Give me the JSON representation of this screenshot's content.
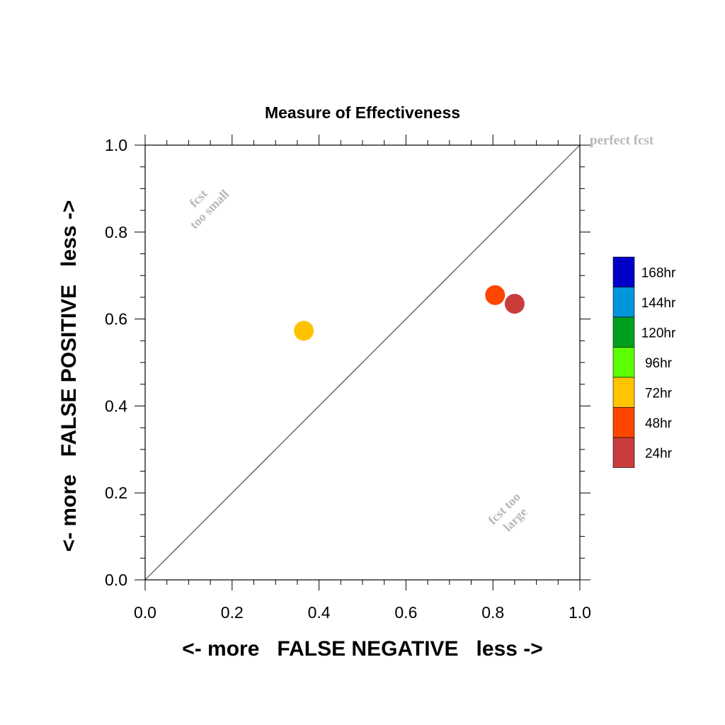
{
  "chart_data": {
    "type": "scatter",
    "title": "Measure of Effectiveness",
    "xlabel": "<- more   FALSE NEGATIVE   less ->",
    "ylabel": "<- more   FALSE POSITIVE   less ->",
    "xlim": [
      0.0,
      1.0
    ],
    "ylim": [
      0.0,
      1.0
    ],
    "x_ticks": [
      "0.0",
      "0.2",
      "0.4",
      "0.6",
      "0.8",
      "1.0"
    ],
    "y_ticks": [
      "0.0",
      "0.2",
      "0.4",
      "0.6",
      "0.8",
      "1.0"
    ],
    "grid": false,
    "diagonal_reference_line": true,
    "annotations": {
      "perfect": "perfect fcst",
      "small_line1": "fcst",
      "small_line2": "too small",
      "large_line1": "fcst too",
      "large_line2": "large"
    },
    "legend": {
      "position": "right",
      "labels": [
        "168hr",
        "144hr",
        "120hr",
        "96hr",
        "72hr",
        "48hr",
        "24hr"
      ],
      "colors": [
        "#0000c8",
        "#0096dc",
        "#00a01e",
        "#5aff00",
        "#ffc300",
        "#ff4600",
        "#c83c3c"
      ]
    },
    "points": [
      {
        "label": "72hr",
        "x": 0.365,
        "y": 0.573,
        "color": "#ffc300"
      },
      {
        "label": "48hr",
        "x": 0.805,
        "y": 0.655,
        "color": "#ff4600"
      },
      {
        "label": "24hr",
        "x": 0.85,
        "y": 0.635,
        "color": "#c83c3c"
      }
    ]
  }
}
